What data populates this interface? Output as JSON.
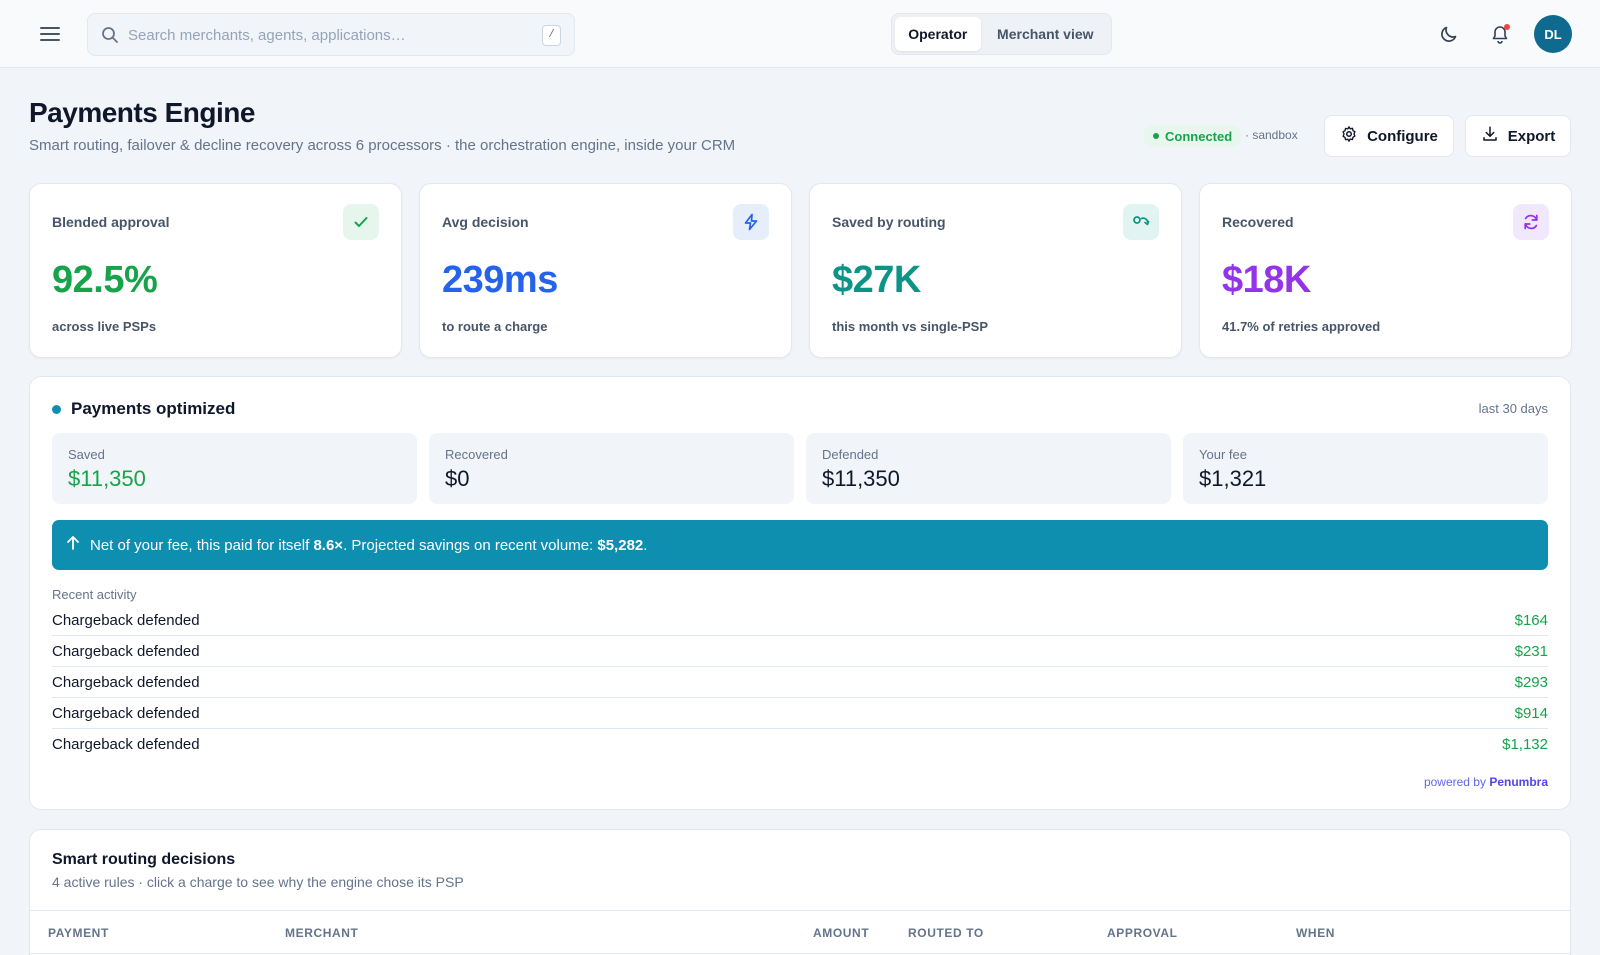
{
  "topbar": {
    "search_placeholder": "Search merchants, agents, applications…",
    "search_shortcut": "/",
    "view_options": [
      "Operator",
      "Merchant view"
    ],
    "active_view": "Operator",
    "avatar_initials": "DL"
  },
  "header": {
    "title": "Payments Engine",
    "subtitle": "Smart routing, failover & decline recovery across 6 processors · the orchestration engine, inside your CRM",
    "status": "Connected",
    "environment": "· sandbox",
    "configure_label": "Configure",
    "export_label": "Export"
  },
  "kpis": [
    {
      "label": "Blended approval",
      "value": "92.5%",
      "caption": "across live PSPs",
      "icon": "check-icon",
      "color": "#16a34a",
      "chip_bg": "#e7f6ec"
    },
    {
      "label": "Avg decision",
      "value": "239ms",
      "caption": "to route a charge",
      "icon": "lightning-icon",
      "color": "#2563eb",
      "chip_bg": "#e6eefc"
    },
    {
      "label": "Saved by routing",
      "value": "$27K",
      "caption": "this month vs single-PSP",
      "icon": "route-icon",
      "color": "#0d9488",
      "chip_bg": "#e2f4f2"
    },
    {
      "label": "Recovered",
      "value": "$18K",
      "caption": "41.7% of retries approved",
      "icon": "refresh-icon",
      "color": "#9333ea",
      "chip_bg": "#f1e8fd"
    }
  ],
  "optimized": {
    "title": "Payments optimized",
    "period": "last 30 days",
    "stats": [
      {
        "label": "Saved",
        "value": "$11,350",
        "color": "#16a34a"
      },
      {
        "label": "Recovered",
        "value": "$0",
        "color": "#0f172a"
      },
      {
        "label": "Defended",
        "value": "$11,350",
        "color": "#0f172a"
      },
      {
        "label": "Your fee",
        "value": "$1,321",
        "color": "#0f172a"
      }
    ],
    "banner": {
      "text1": "Net of your fee, this paid for itself ",
      "multiple": "8.6×",
      "text2": ". Projected savings on recent volume: ",
      "projected": "$5,282",
      "text3": "."
    },
    "activity_heading": "Recent activity",
    "activity": [
      {
        "label": "Chargeback defended",
        "amount": "$164"
      },
      {
        "label": "Chargeback defended",
        "amount": "$231"
      },
      {
        "label": "Chargeback defended",
        "amount": "$293"
      },
      {
        "label": "Chargeback defended",
        "amount": "$914"
      },
      {
        "label": "Chargeback defended",
        "amount": "$1,132"
      }
    ],
    "powered_prefix": "powered by ",
    "powered_brand": "Penumbra"
  },
  "routing": {
    "title": "Smart routing decisions",
    "subtitle": "4 active rules · click a charge to see why the engine chose its PSP",
    "columns": [
      "PAYMENT",
      "MERCHANT",
      "AMOUNT",
      "ROUTED TO",
      "APPROVAL",
      "WHEN"
    ]
  }
}
